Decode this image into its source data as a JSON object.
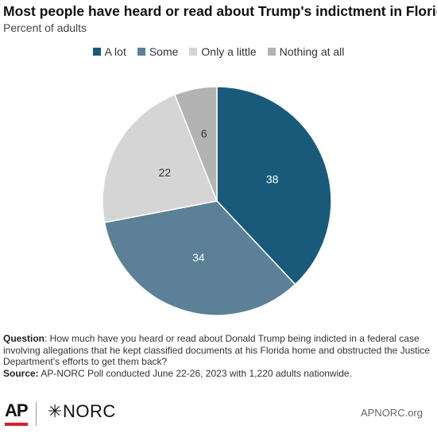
{
  "header": {
    "title": "Most people have heard or read about Trump's indictment in Florida.",
    "subtitle": "Percent of adults"
  },
  "chart_data": {
    "type": "pie",
    "categories": [
      "A lot",
      "Some",
      "Only a little",
      "Nothing at all"
    ],
    "values": [
      38,
      34,
      22,
      6
    ],
    "colors": [
      "#195a7a",
      "#5b8097",
      "#d5d5d5",
      "#b3b3b3"
    ],
    "label_colors": [
      "#ffffff",
      "#ffffff",
      "#333333",
      "#333333"
    ],
    "legend_position": "top",
    "start_angle": "12 o'clock, clockwise"
  },
  "notes": {
    "question_label": "Question",
    "question_text": ": How much have you heard or read about Donald Trump being indicted in a federal case involving allegations that he kept classified documents at his Florida home and obstructed the Justice Department's efforts to get them back?",
    "source_label": "Source:",
    "source_text": " AP-NORC Poll conducted June 22-26, 2023 with 1,220 adults nationwide."
  },
  "footer": {
    "ap_logo": "AP",
    "norc_logo": "NORC",
    "site": "APNORC.org"
  }
}
